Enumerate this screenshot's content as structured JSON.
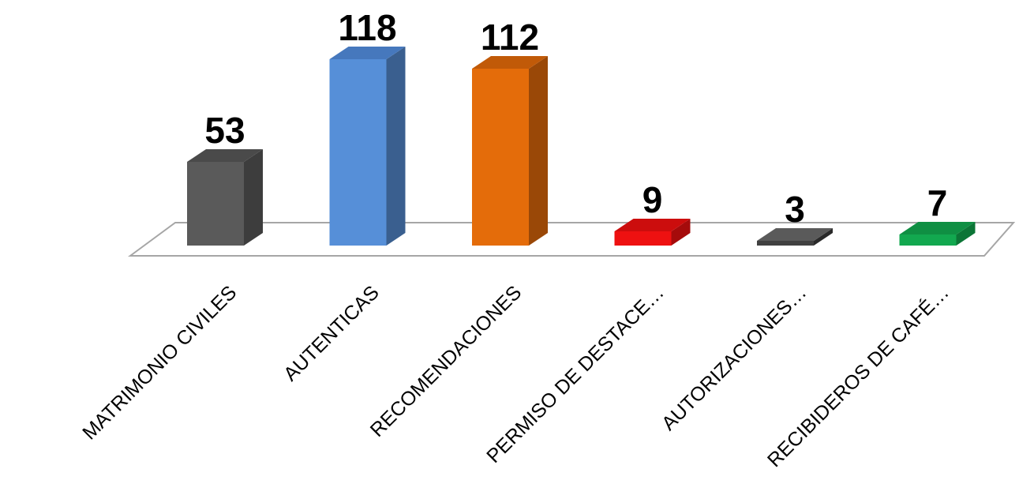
{
  "chart_data": {
    "type": "bar",
    "style": "3d-column",
    "categories": [
      "MATRIMONIO CIVILES",
      "AUTENTICAS",
      "RECOMENDACIONES",
      "PERMISO DE DESTACE…",
      "AUTORIZACIONES…",
      "RECIBIDEROS DE CAFÉ…"
    ],
    "values": [
      53,
      118,
      112,
      9,
      3,
      7
    ],
    "data_labels": [
      "53",
      "118",
      "112",
      "9",
      "3",
      "7"
    ],
    "colors": [
      "#5a5a5a",
      "#568fd8",
      "#e46c0a",
      "#ee1111",
      "#404040",
      "#12a84f"
    ],
    "side_colors": [
      "#3d3d3d",
      "#3a5f8f",
      "#9a4807",
      "#a50b0b",
      "#2a2a2a",
      "#0c7536"
    ],
    "top_colors": [
      "#4a4a4a",
      "#4678bd",
      "#c15a08",
      "#cc0d0d",
      "#5a5a5a",
      "#0f8f43"
    ],
    "title": "",
    "xlabel": "",
    "ylabel": "",
    "ylim": [
      0,
      120
    ],
    "grid": false,
    "legend": "none"
  }
}
